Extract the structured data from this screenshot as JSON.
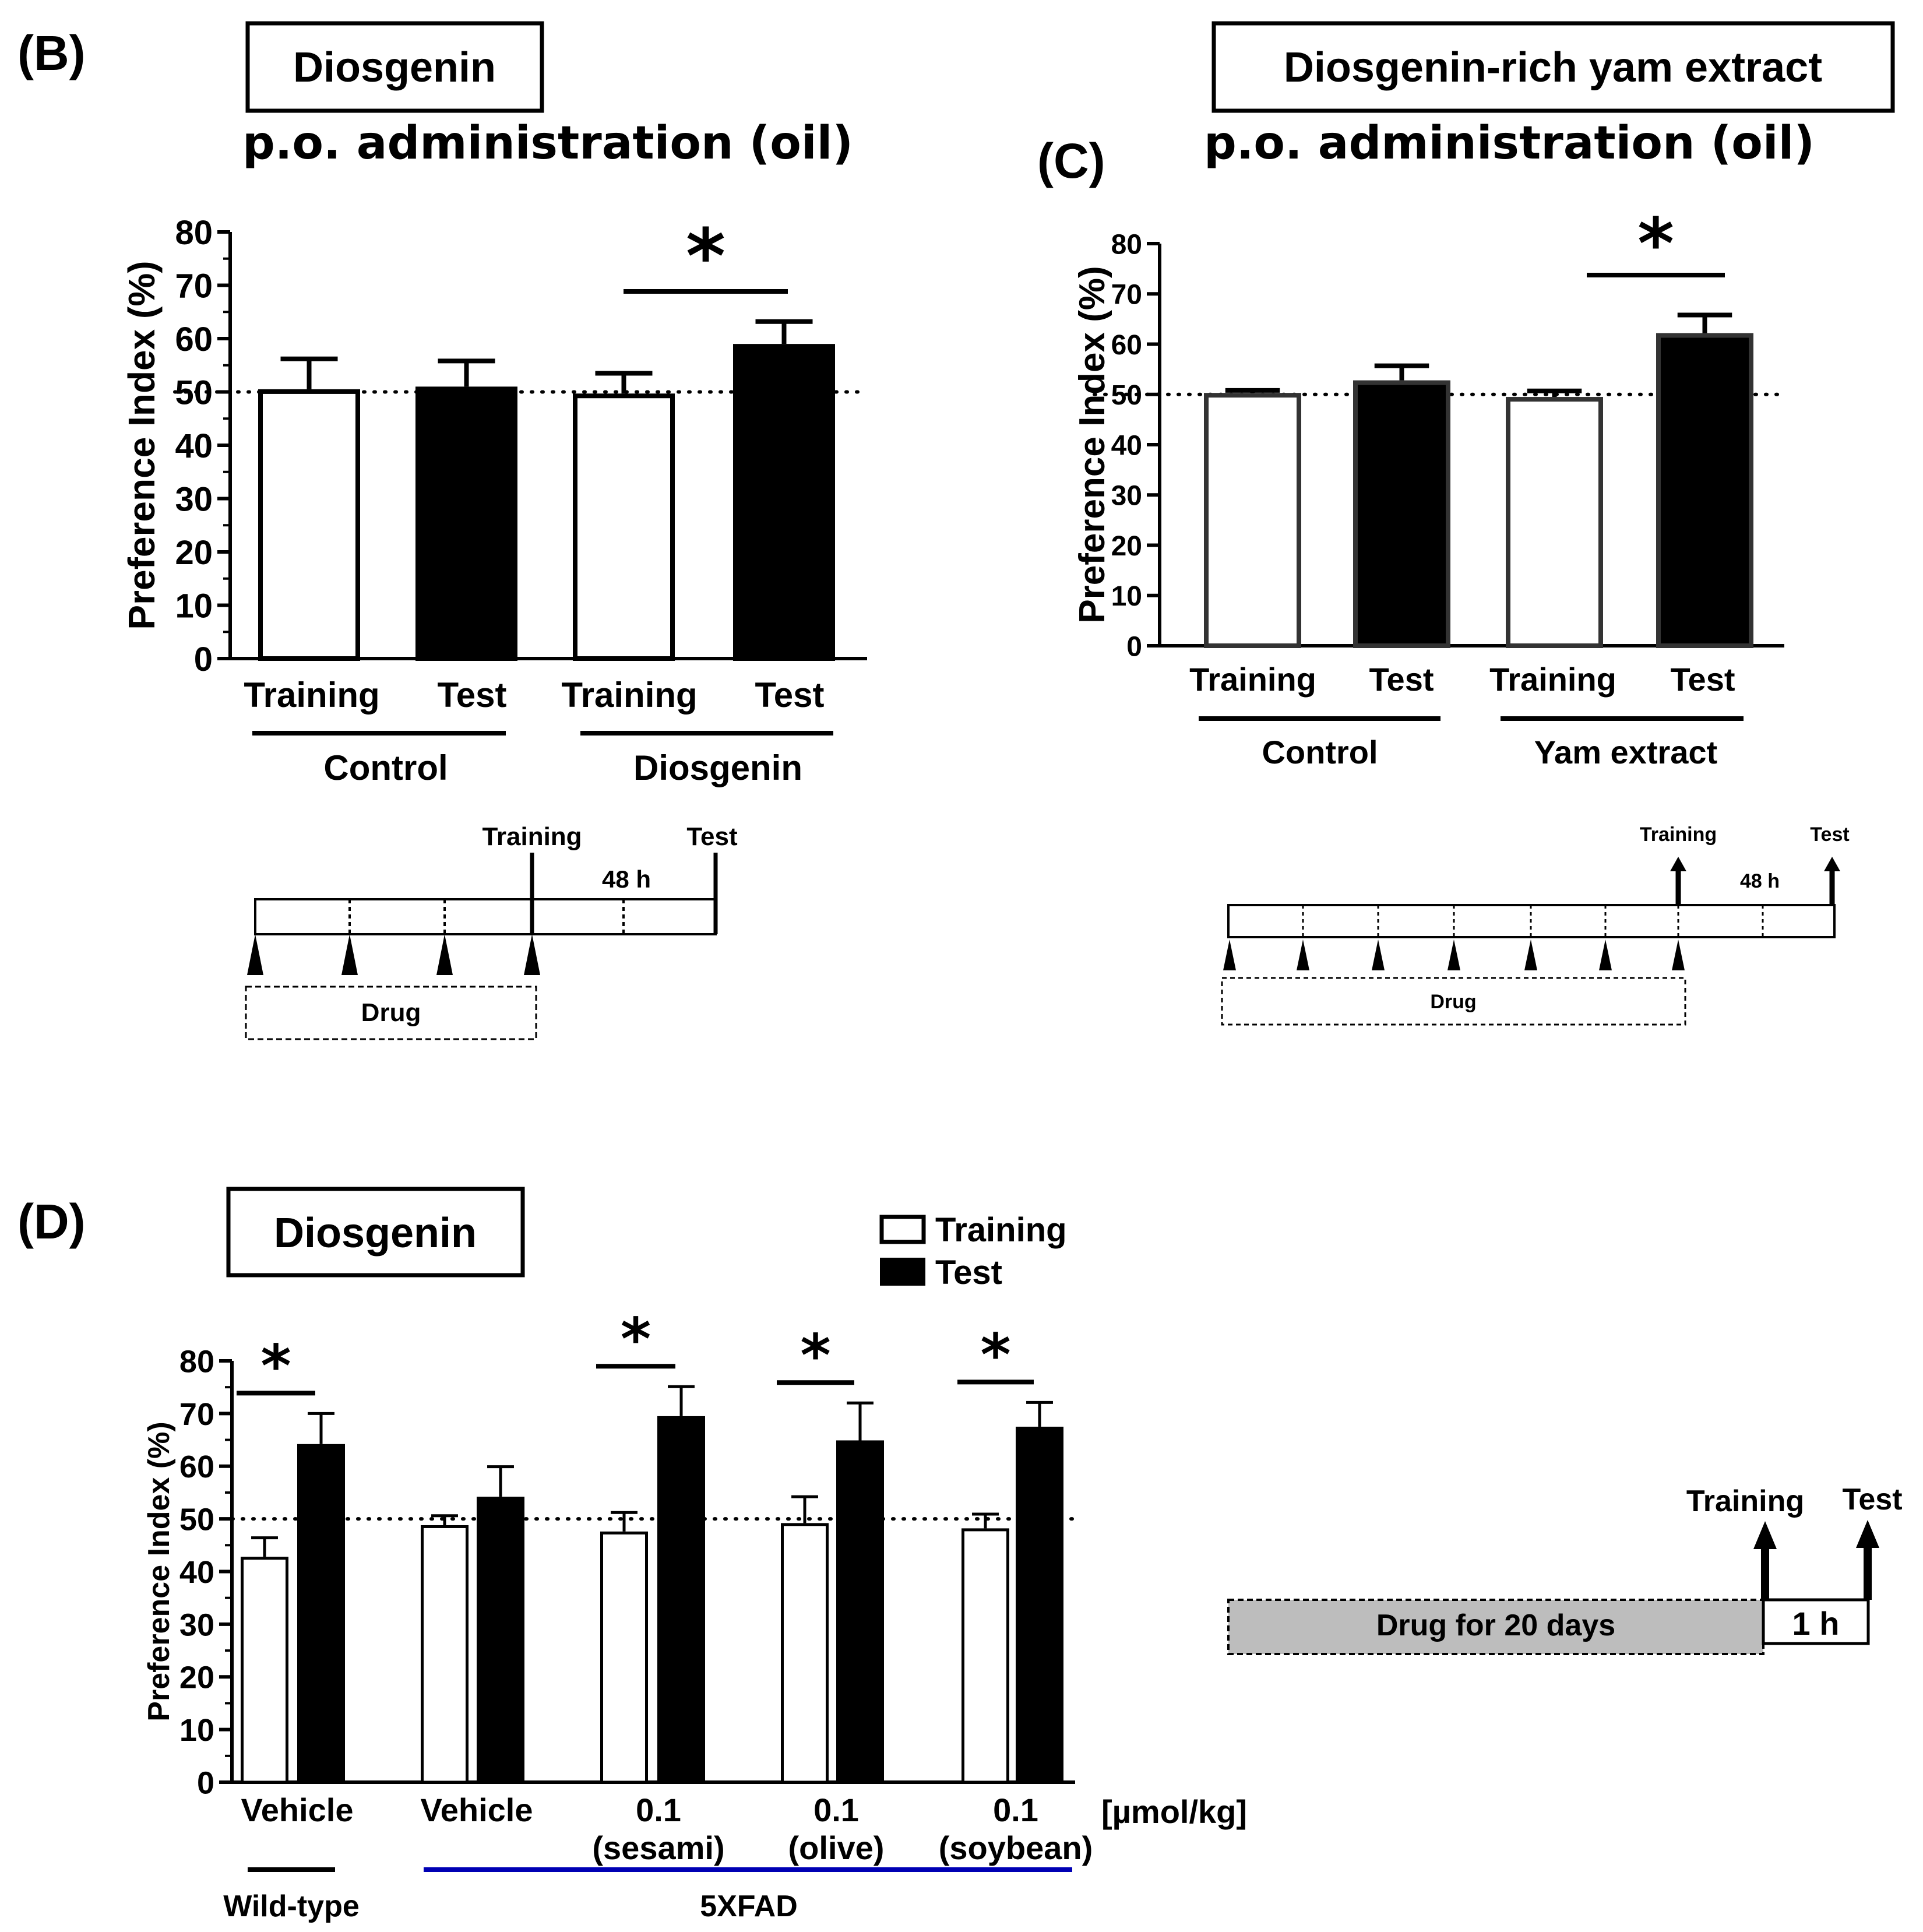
{
  "panels": {
    "B": {
      "letter": "(B)",
      "title": "Diosgenin",
      "subtitle": "p.o. administration (oil)",
      "groups": [
        {
          "label": "Control",
          "bars": [
            "Training",
            "Test"
          ]
        },
        {
          "label": "Diosgenin",
          "bars": [
            "Training",
            "Test"
          ]
        }
      ],
      "significance": "*",
      "schedule": {
        "training": "Training",
        "test": "Test",
        "interval": "48 h",
        "drug": "Drug"
      }
    },
    "C": {
      "letter": "(C)",
      "title": "Diosgenin-rich yam extract",
      "subtitle": "p.o. administration (oil)",
      "groups": [
        {
          "label": "Control",
          "bars": [
            "Training",
            "Test"
          ]
        },
        {
          "label": "Yam extract",
          "bars": [
            "Training",
            "Test"
          ]
        }
      ],
      "significance": "*",
      "schedule": {
        "training": "Training",
        "test": "Test",
        "interval": "48 h",
        "drug": "Drug"
      }
    },
    "D": {
      "letter": "(D)",
      "title": "Diosgenin",
      "legend": {
        "training": "Training",
        "test": "Test"
      },
      "unit": "[µmol/kg]",
      "x_labels": [
        [
          "Vehicle",
          ""
        ],
        [
          "Vehicle",
          ""
        ],
        [
          "0.1",
          "(sesami)"
        ],
        [
          "0.1",
          "(olive)"
        ],
        [
          "0.1",
          "(soybean)"
        ]
      ],
      "group_labels": {
        "wild_type": "Wild-type",
        "fxfad": "5XFAD"
      },
      "significance": "*",
      "schedule": {
        "training": "Training",
        "test": "Test",
        "interval": "1 h",
        "drug": "Drug for 20 days"
      }
    }
  },
  "chart_data": [
    {
      "id": "B",
      "type": "bar",
      "title": "p.o. administration (oil)",
      "ylabel": "Preference Index (%)",
      "ylim": [
        0,
        80
      ],
      "yticks": [
        0,
        10,
        20,
        30,
        40,
        50,
        60,
        70,
        80
      ],
      "categories": [
        "Control Training",
        "Control Test",
        "Diosgenin Training",
        "Diosgenin Test"
      ],
      "values": [
        50.5,
        51,
        49.7,
        59
      ],
      "errors": [
        5.7,
        4.8,
        3.8,
        4.2
      ],
      "fills": [
        "open",
        "filled",
        "open",
        "filled"
      ],
      "reference_line": 50,
      "significant_pairs": [
        [
          2,
          3
        ]
      ]
    },
    {
      "id": "C",
      "type": "bar",
      "title": "p.o. administration (oil)",
      "ylabel": "Preference Index (%)",
      "ylim": [
        0,
        80
      ],
      "yticks": [
        0,
        10,
        20,
        30,
        40,
        50,
        60,
        70,
        80
      ],
      "categories": [
        "Control Training",
        "Control Test",
        "Yam extract Training",
        "Yam extract Test"
      ],
      "values": [
        50.3,
        52.8,
        49.5,
        62.2
      ],
      "errors": [
        0.5,
        2.9,
        1.2,
        3.6
      ],
      "fills": [
        "open",
        "filled",
        "open",
        "filled"
      ],
      "reference_line": 50,
      "significant_pairs": [
        [
          2,
          3
        ]
      ]
    },
    {
      "id": "D",
      "type": "bar",
      "title": "Diosgenin",
      "ylabel": "Preference Index (%)",
      "ylim": [
        0,
        80
      ],
      "yticks": [
        0,
        10,
        20,
        30,
        40,
        50,
        60,
        70,
        80
      ],
      "categories": [
        "Vehicle (Wild-type)",
        "Vehicle (5XFAD)",
        "0.1 (sesami)",
        "0.1 (olive)",
        "0.1 (soybean)"
      ],
      "series": [
        {
          "name": "Training",
          "values": [
            42.8,
            48.8,
            47.6,
            49.2,
            48.2
          ],
          "errors": [
            3.6,
            1.8,
            3.6,
            5.0,
            2.7
          ]
        },
        {
          "name": "Test",
          "values": [
            64.2,
            54.2,
            69.5,
            64.9,
            67.5
          ],
          "errors": [
            5.8,
            5.7,
            5.6,
            7.1,
            4.6
          ]
        }
      ],
      "reference_line": 50,
      "significant_groups": [
        0,
        2,
        3,
        4
      ]
    }
  ]
}
